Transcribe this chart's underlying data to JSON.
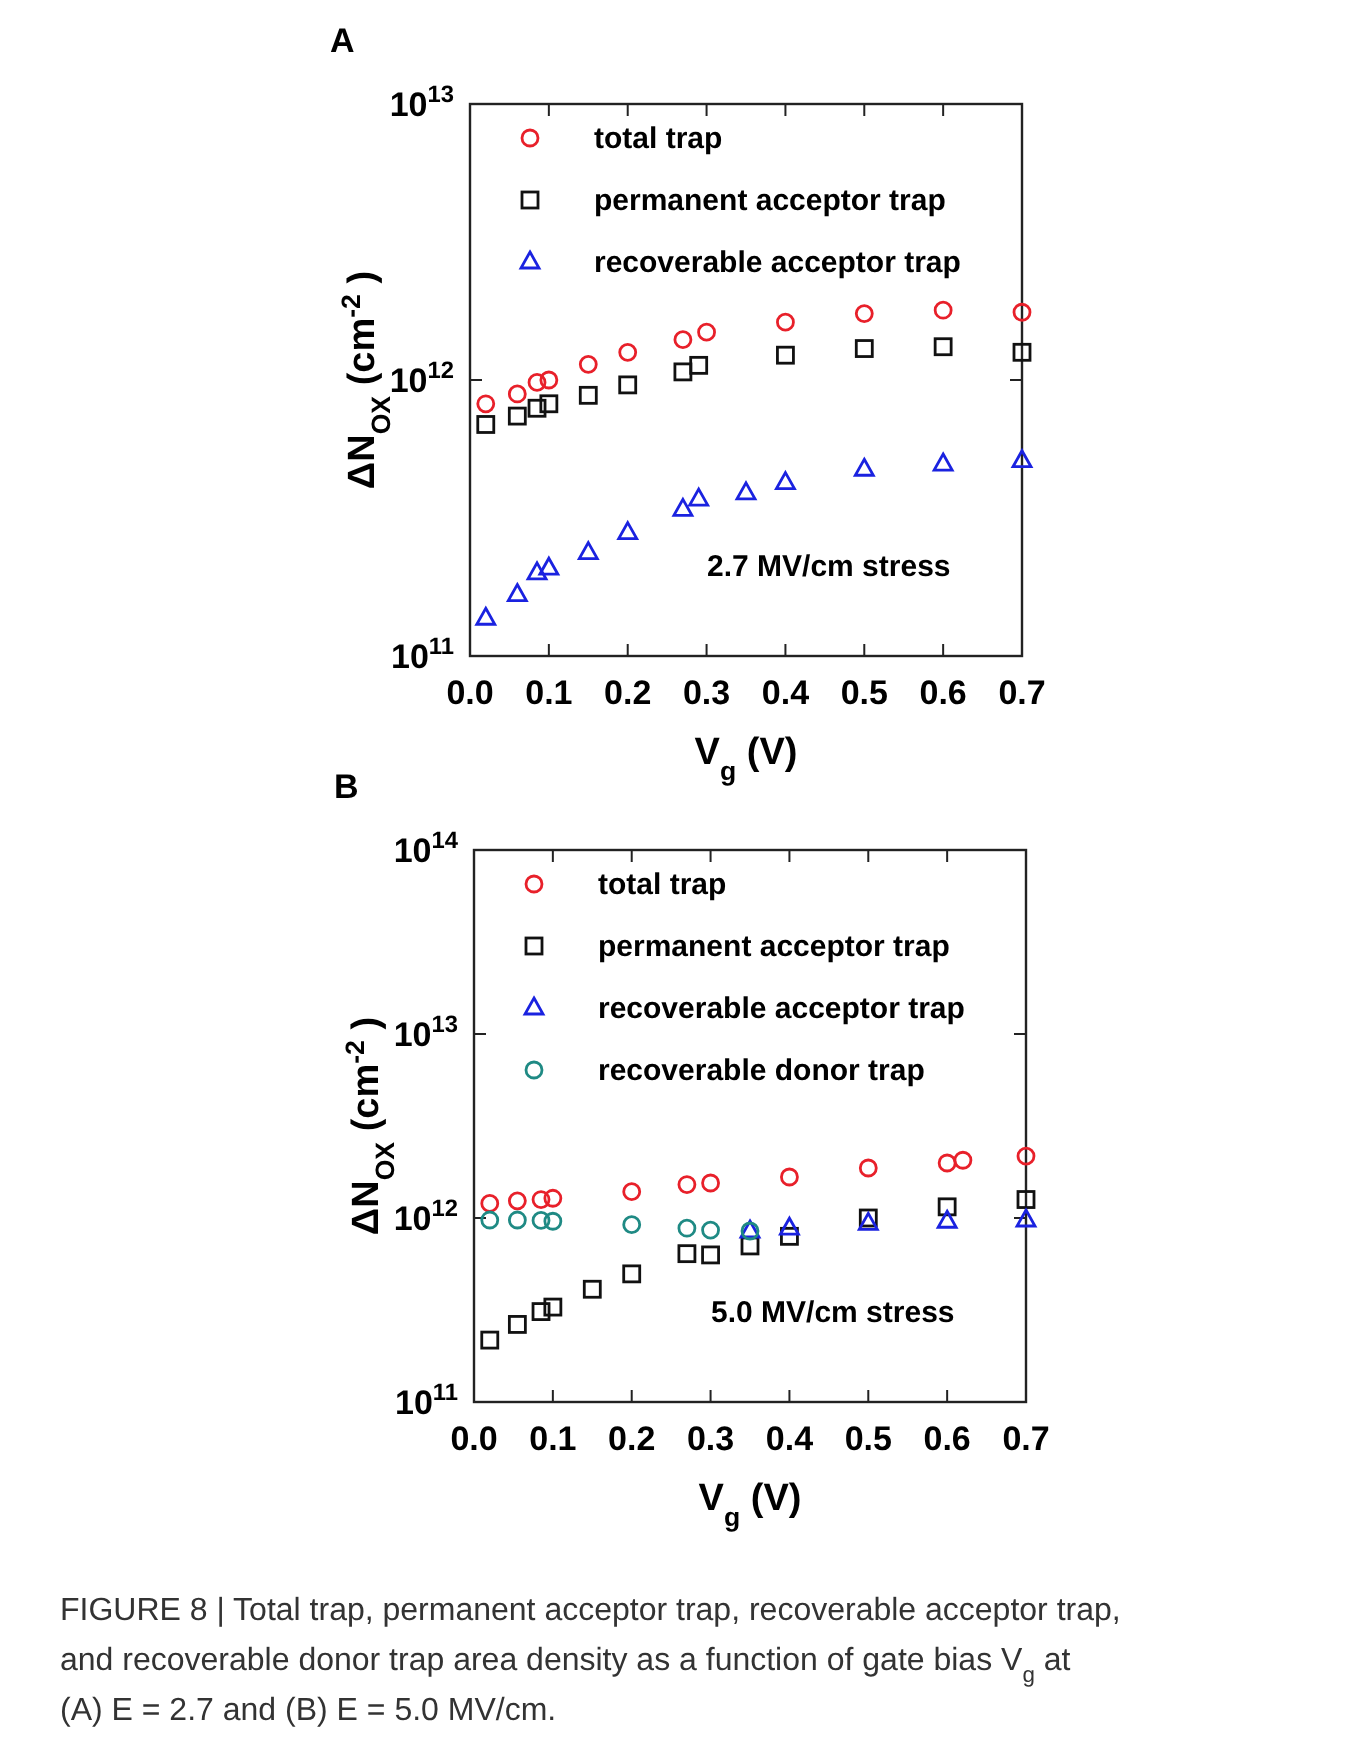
{
  "chart_data": [
    {
      "type": "scatter",
      "title": "A",
      "xlabel": "V$_{g}$ (V)",
      "ylabel": "ΔN$_{OX}$ (cm$^{-2}$)",
      "log": "y",
      "xlim": [
        0,
        0.7
      ],
      "xticks": [
        {
          "value": 0,
          "label": "0.0"
        },
        0.1,
        0.2,
        0.3,
        0.4,
        0.5,
        0.6,
        0.7
      ],
      "ylim": [
        100000000000.0,
        10000000000000.0
      ],
      "yticks": [
        {
          "value": 100000000000.0,
          "label": "10$^{11}$"
        },
        {
          "value": 1000000000000.0,
          "label": "10$^{12}$"
        },
        {
          "value": 10000000000000.0,
          "label": "10$^{13}$"
        }
      ],
      "legend": "top left",
      "grid": false,
      "annotations": [
        "2.7 MV/cm stress"
      ],
      "series": [
        {
          "name": "total trap",
          "color": "#e8202a",
          "marker": "circle",
          "x": [
            0.02,
            0.06,
            0.085,
            0.1,
            0.15,
            0.2,
            0.27,
            0.3,
            0.4,
            0.5,
            0.6,
            0.7
          ],
          "values": [
            820000000000.0,
            890000000000.0,
            980000000000.0,
            1000000000000.0,
            1140000000000.0,
            1260000000000.0,
            1400000000000.0,
            1490000000000.0,
            1620000000000.0,
            1740000000000.0,
            1790000000000.0,
            1760000000000.0
          ]
        },
        {
          "name": "permanent acceptor trap",
          "color": "#111111",
          "marker": "square",
          "x": [
            0.02,
            0.06,
            0.085,
            0.1,
            0.15,
            0.2,
            0.27,
            0.29,
            0.4,
            0.5,
            0.6,
            0.7
          ],
          "values": [
            690000000000.0,
            740000000000.0,
            790000000000.0,
            820000000000.0,
            880000000000.0,
            960000000000.0,
            1070000000000.0,
            1130000000000.0,
            1230000000000.0,
            1300000000000.0,
            1320000000000.0,
            1260000000000.0
          ]
        },
        {
          "name": "recoverable acceptor trap",
          "color": "#1a22e0",
          "marker": "triangle",
          "x": [
            0.02,
            0.06,
            0.085,
            0.1,
            0.15,
            0.2,
            0.27,
            0.29,
            0.35,
            0.4,
            0.5,
            0.6,
            0.7
          ],
          "values": [
            137000000000.0,
            167000000000.0,
            200000000000.0,
            208000000000.0,
            237000000000.0,
            280000000000.0,
            340000000000.0,
            370000000000.0,
            390000000000.0,
            425000000000.0,
            475000000000.0,
            496000000000.0,
            510000000000.0
          ]
        }
      ]
    },
    {
      "type": "scatter",
      "title": "B",
      "xlabel": "V$_{g}$ (V)",
      "ylabel": "ΔN$_{OX}$ (cm$^{-2}$)",
      "log": "y",
      "xlim": [
        0,
        0.7
      ],
      "xticks": [
        {
          "value": 0,
          "label": "0.0"
        },
        0.1,
        0.2,
        0.3,
        0.4,
        0.5,
        0.6,
        0.7
      ],
      "ylim": [
        100000000000.0,
        100000000000000.0
      ],
      "yticks": [
        {
          "value": 100000000000.0,
          "label": "10$^{11}$"
        },
        {
          "value": 1000000000000.0,
          "label": "10$^{12}$"
        },
        {
          "value": 10000000000000.0,
          "label": "10$^{13}$"
        },
        {
          "value": 100000000000000.0,
          "label": "10$^{14}$"
        }
      ],
      "legend": "top left",
      "grid": false,
      "annotations": [
        "5.0 MV/cm stress",
        "FIGURE 8 | Total trap, permanent acceptor trap, recoverable acceptor trap, and recoverable donor trap area density as a function of gate bias V$_{g}$ at (A) E = 2.7 and (B) E = 5.0 MV/cm."
      ],
      "series": [
        {
          "name": "total trap",
          "color": "#e8202a",
          "marker": "circle",
          "x": [
            0.02,
            0.055,
            0.085,
            0.1,
            0.2,
            0.27,
            0.3,
            0.4,
            0.5,
            0.6,
            0.62,
            0.7
          ],
          "values": [
            1200000000000.0,
            1240000000000.0,
            1260000000000.0,
            1280000000000.0,
            1390000000000.0,
            1520000000000.0,
            1550000000000.0,
            1670000000000.0,
            1870000000000.0,
            1990000000000.0,
            2060000000000.0,
            2170000000000.0
          ]
        },
        {
          "name": "permanent acceptor trap",
          "color": "#111111",
          "marker": "square",
          "x": [
            0.02,
            0.055,
            0.085,
            0.1,
            0.15,
            0.2,
            0.27,
            0.3,
            0.35,
            0.4,
            0.5,
            0.6,
            0.7
          ],
          "values": [
            217000000000.0,
            264000000000.0,
            310000000000.0,
            328000000000.0,
            410000000000.0,
            497000000000.0,
            640000000000.0,
            630000000000.0,
            705000000000.0,
            795000000000.0,
            1000000000000.0,
            1150000000000.0,
            1260000000000.0
          ]
        },
        {
          "name": "recoverable acceptor trap",
          "color": "#1a22e0",
          "marker": "triangle",
          "x": [
            0.35,
            0.4,
            0.5,
            0.6,
            0.7
          ],
          "values": [
            850000000000.0,
            880000000000.0,
            935000000000.0,
            960000000000.0,
            975000000000.0
          ]
        },
        {
          "name": "recoverable donor trap",
          "color": "#1f8a84",
          "marker": "circle",
          "x": [
            0.02,
            0.055,
            0.085,
            0.1,
            0.2,
            0.27,
            0.3,
            0.35
          ],
          "values": [
            975000000000.0,
            975000000000.0,
            970000000000.0,
            960000000000.0,
            920000000000.0,
            880000000000.0,
            860000000000.0,
            850000000000.0
          ]
        }
      ]
    }
  ]
}
